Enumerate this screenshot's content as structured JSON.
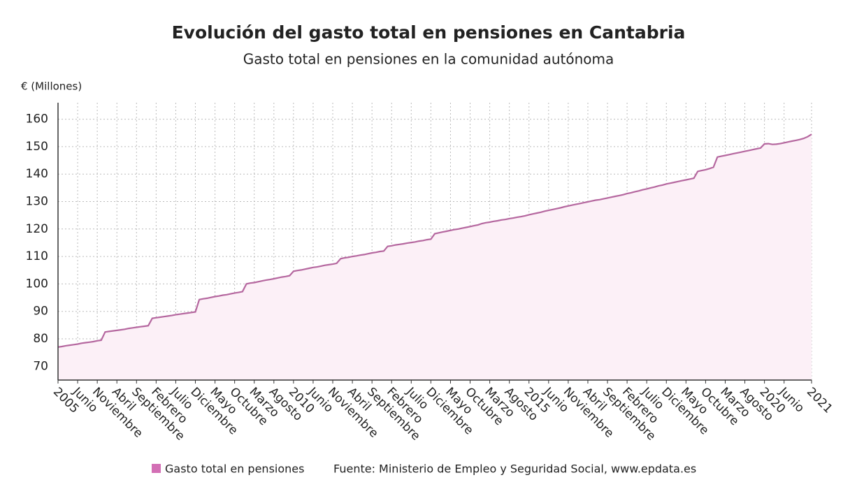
{
  "chart_data": {
    "type": "line",
    "title": "Evolución del gasto total en pensiones en Cantabria",
    "subtitle": "Gasto total en pensiones en la comunidad autónoma",
    "y_label": "€ (Millones)",
    "source": "Fuente: Ministerio de Empleo y Seguridad Social, www.epdata.es",
    "categories": [
      "2005",
      null,
      null,
      null,
      null,
      "Junio",
      null,
      null,
      null,
      null,
      "Noviembre",
      null,
      null,
      null,
      null,
      "Abril",
      null,
      null,
      null,
      null,
      "Septiembre",
      null,
      null,
      null,
      null,
      "Febrero",
      null,
      null,
      null,
      null,
      "Julio",
      null,
      null,
      null,
      null,
      "Diciembre",
      null,
      null,
      null,
      null,
      "Mayo",
      null,
      null,
      null,
      null,
      "Octubre",
      null,
      null,
      null,
      null,
      "Marzo",
      null,
      null,
      null,
      null,
      "Agosto",
      null,
      null,
      null,
      null,
      "2010",
      null,
      null,
      null,
      null,
      "Junio",
      null,
      null,
      null,
      null,
      "Noviembre",
      null,
      null,
      null,
      null,
      "Abril",
      null,
      null,
      null,
      null,
      "Septiembre",
      null,
      null,
      null,
      null,
      "Febrero",
      null,
      null,
      null,
      null,
      "Julio",
      null,
      null,
      null,
      null,
      "Diciembre",
      null,
      null,
      null,
      null,
      "Mayo",
      null,
      null,
      null,
      null,
      "Octubre",
      null,
      null,
      null,
      null,
      "Marzo",
      null,
      null,
      null,
      null,
      "Agosto",
      null,
      null,
      null,
      null,
      "2015",
      null,
      null,
      null,
      null,
      "Junio",
      null,
      null,
      null,
      null,
      "Noviembre",
      null,
      null,
      null,
      null,
      "Abril",
      null,
      null,
      null,
      null,
      "Septiembre",
      null,
      null,
      null,
      null,
      "Febrero",
      null,
      null,
      null,
      null,
      "Julio",
      null,
      null,
      null,
      null,
      "Diciembre",
      null,
      null,
      null,
      null,
      "Mayo",
      null,
      null,
      null,
      null,
      "Octubre",
      null,
      null,
      null,
      null,
      "Marzo",
      null,
      null,
      null,
      null,
      "Agosto",
      null,
      null,
      null,
      null,
      "2020",
      null,
      null,
      null,
      null,
      "Junio",
      null,
      null,
      null,
      null,
      null,
      null,
      "2021"
    ],
    "series": [
      {
        "name": "Gasto total en pensiones",
        "color": "#b5679f",
        "legend_color": "#d36fb5",
        "fill": "#fcf0f7",
        "values": [
          77.0,
          77.2,
          77.5,
          77.7,
          77.9,
          78.1,
          78.4,
          78.6,
          78.8,
          79.0,
          79.3,
          79.5,
          82.5,
          82.7,
          82.9,
          83.1,
          83.3,
          83.5,
          83.8,
          84.0,
          84.2,
          84.4,
          84.6,
          84.8,
          87.5,
          87.7,
          87.9,
          88.1,
          88.3,
          88.5,
          88.8,
          89.0,
          89.2,
          89.4,
          89.6,
          89.8,
          94.3,
          94.6,
          94.8,
          95.1,
          95.4,
          95.6,
          95.9,
          96.1,
          96.4,
          96.7,
          96.9,
          97.2,
          100.0,
          100.3,
          100.5,
          100.8,
          101.1,
          101.4,
          101.6,
          101.9,
          102.2,
          102.5,
          102.7,
          103.0,
          104.6,
          104.9,
          105.1,
          105.4,
          105.7,
          106.0,
          106.2,
          106.5,
          106.8,
          107.0,
          107.2,
          107.5,
          109.2,
          109.5,
          109.7,
          110.0,
          110.2,
          110.5,
          110.7,
          111.0,
          111.3,
          111.5,
          111.8,
          112.0,
          113.7,
          113.9,
          114.2,
          114.4,
          114.6,
          114.9,
          115.1,
          115.3,
          115.6,
          115.8,
          116.1,
          116.3,
          118.3,
          118.6,
          118.9,
          119.2,
          119.5,
          119.8,
          120.0,
          120.3,
          120.6,
          120.9,
          121.2,
          121.5,
          122.0,
          122.3,
          122.5,
          122.8,
          123.0,
          123.3,
          123.5,
          123.8,
          124.0,
          124.3,
          124.5,
          124.8,
          125.2,
          125.5,
          125.8,
          126.1,
          126.5,
          126.8,
          127.1,
          127.4,
          127.7,
          128.1,
          128.4,
          128.7,
          129.0,
          129.3,
          129.6,
          129.9,
          130.2,
          130.5,
          130.7,
          131.0,
          131.3,
          131.6,
          131.9,
          132.2,
          132.5,
          132.9,
          133.2,
          133.6,
          133.9,
          134.3,
          134.6,
          135.0,
          135.3,
          135.7,
          136.0,
          136.4,
          136.7,
          137.0,
          137.3,
          137.6,
          137.9,
          138.2,
          138.5,
          141.0,
          141.3,
          141.6,
          142.0,
          142.5,
          146.2,
          146.5,
          146.8,
          147.1,
          147.4,
          147.7,
          148.0,
          148.3,
          148.6,
          148.9,
          149.2,
          149.5,
          151.0,
          151.1,
          150.8,
          150.9,
          151.1,
          151.4,
          151.7,
          152.0,
          152.3,
          152.6,
          153.0,
          153.6,
          154.5
        ]
      }
    ],
    "ylim": [
      65,
      166
    ],
    "yticks": [
      70,
      80,
      90,
      100,
      110,
      120,
      130,
      140,
      150,
      160
    ],
    "grid": true
  }
}
